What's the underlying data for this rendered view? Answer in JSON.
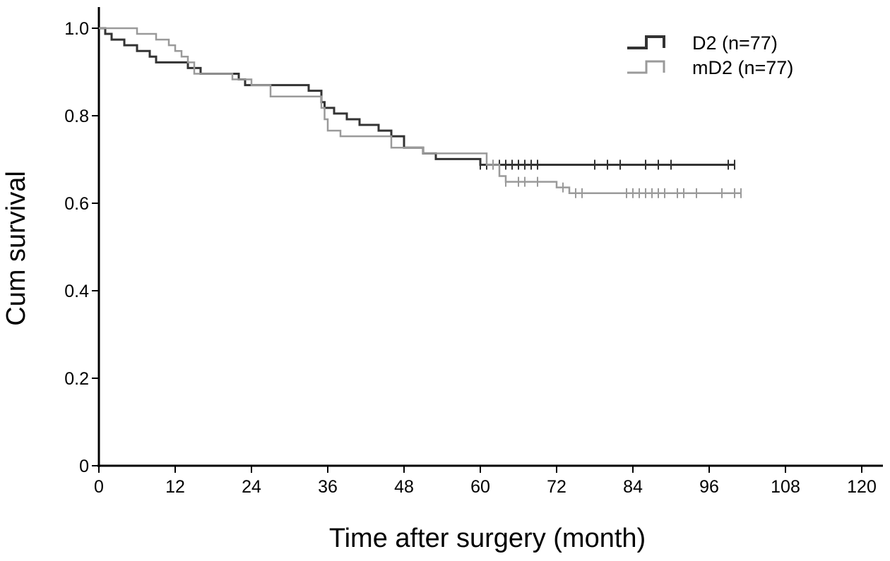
{
  "chart_data": {
    "type": "line",
    "subtype": "kaplan-meier-step",
    "xlabel": "Time after surgery (month)",
    "ylabel": "Cum survival",
    "xlim": [
      0,
      120
    ],
    "ylim": [
      0,
      1.0
    ],
    "x_ticks": [
      0,
      12,
      24,
      36,
      48,
      60,
      72,
      84,
      96,
      108,
      120
    ],
    "x_tick_labels": [
      "0",
      "12",
      "24",
      "36",
      "48",
      "60",
      "72",
      "84",
      "96",
      "108",
      "120"
    ],
    "y_ticks": [
      0,
      0.2,
      0.4,
      0.6,
      0.8,
      1.0
    ],
    "y_tick_labels": [
      "0",
      "0.2",
      "0.4",
      "0.6",
      "0.8",
      "1.0"
    ],
    "grid": false,
    "legend_position": "top-right",
    "series": [
      {
        "name": "D2 (n=77)",
        "color": "#333333",
        "steps": [
          [
            0,
            1.0
          ],
          [
            1,
            0.987
          ],
          [
            2,
            0.974
          ],
          [
            4,
            0.961
          ],
          [
            6,
            0.948
          ],
          [
            8,
            0.935
          ],
          [
            9,
            0.922
          ],
          [
            14,
            0.909
          ],
          [
            16,
            0.896
          ],
          [
            22,
            0.883
          ],
          [
            23,
            0.87
          ],
          [
            33,
            0.857
          ],
          [
            35,
            0.831
          ],
          [
            35.5,
            0.818
          ],
          [
            37,
            0.805
          ],
          [
            39,
            0.792
          ],
          [
            41,
            0.779
          ],
          [
            44,
            0.766
          ],
          [
            46,
            0.753
          ],
          [
            48,
            0.727
          ],
          [
            51,
            0.714
          ],
          [
            53,
            0.701
          ],
          [
            60,
            0.688
          ]
        ],
        "end_x": 100,
        "censor_x": [
          60,
          61,
          62,
          63,
          64,
          65,
          66,
          67,
          68,
          69,
          78,
          80,
          82,
          86,
          88,
          90,
          99,
          100
        ]
      },
      {
        "name": "mD2 (n=77)",
        "color": "#9a9a9a",
        "steps": [
          [
            0,
            1.0
          ],
          [
            6,
            0.987
          ],
          [
            9,
            0.974
          ],
          [
            11,
            0.961
          ],
          [
            12,
            0.948
          ],
          [
            13,
            0.935
          ],
          [
            14,
            0.922
          ],
          [
            15,
            0.896
          ],
          [
            21,
            0.883
          ],
          [
            24,
            0.87
          ],
          [
            27,
            0.844
          ],
          [
            35,
            0.818
          ],
          [
            35.5,
            0.792
          ],
          [
            36,
            0.766
          ],
          [
            38,
            0.753
          ],
          [
            46,
            0.727
          ],
          [
            51,
            0.714
          ],
          [
            61,
            0.688
          ],
          [
            63,
            0.662
          ],
          [
            64,
            0.649
          ],
          [
            72,
            0.636
          ],
          [
            74,
            0.623
          ]
        ],
        "end_x": 101,
        "censor_x": [
          62,
          64,
          66,
          67,
          69,
          73,
          75,
          76,
          83,
          84,
          85,
          86,
          87,
          88,
          89,
          91,
          92,
          94,
          98,
          100,
          101
        ]
      }
    ]
  }
}
